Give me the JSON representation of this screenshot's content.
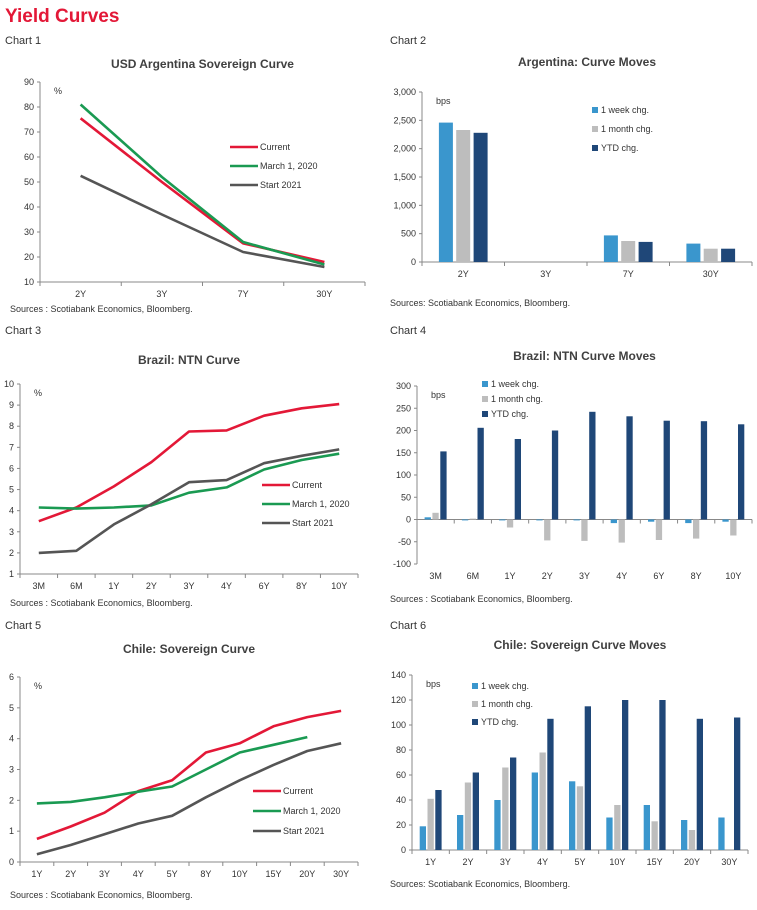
{
  "page": {
    "title": "Yield Curves",
    "colors": {
      "title": "#e31837",
      "current": "#e31837",
      "march": "#1a9a52",
      "start2021": "#555555",
      "week": "#3a96cd",
      "month": "#bdbdbd",
      "ytd": "#1f4778"
    }
  },
  "chart_data": [
    {
      "label": "Chart 1",
      "type": "line",
      "title": "USD Argentina Sovereign Curve",
      "unit": "%",
      "categories": [
        "2Y",
        "3Y",
        "7Y",
        "30Y"
      ],
      "ylim": [
        10,
        90
      ],
      "yticks": [
        10,
        20,
        30,
        40,
        50,
        60,
        70,
        80,
        90
      ],
      "legend_position": "middle-right",
      "series": [
        {
          "name": "Current",
          "color": "#e31837",
          "values": [
            75.5,
            50,
            25.5,
            18
          ]
        },
        {
          "name": "March 1, 2020",
          "color": "#1a9a52",
          "values": [
            81,
            52,
            26,
            17
          ]
        },
        {
          "name": "Start 2021",
          "color": "#555555",
          "values": [
            52.5,
            37,
            22,
            16
          ]
        }
      ],
      "source": "Sources : Scotiabank Economics, Bloomberg."
    },
    {
      "label": "Chart 2",
      "type": "bar",
      "title": "Argentina: Curve Moves",
      "unit": "bps",
      "categories": [
        "2Y",
        "3Y",
        "7Y",
        "30Y"
      ],
      "ylim": [
        0,
        3000
      ],
      "yticks": [
        0,
        500,
        1000,
        1500,
        2000,
        2500,
        3000
      ],
      "ytick_labels": [
        "0",
        "500",
        "1,000",
        "1,500",
        "2,000",
        "2,500",
        "3,000"
      ],
      "legend_position": "top-right",
      "series": [
        {
          "name": "1 week chg.",
          "color": "#3a96cd",
          "values": [
            2460,
            null,
            470,
            325
          ]
        },
        {
          "name": "1 month chg.",
          "color": "#bdbdbd",
          "values": [
            2330,
            null,
            370,
            235
          ]
        },
        {
          "name": "YTD chg.",
          "color": "#1f4778",
          "values": [
            2280,
            null,
            355,
            235
          ]
        }
      ],
      "source": "Sources: Scotiabank Economics, Bloomberg."
    },
    {
      "label": "Chart 3",
      "type": "line",
      "title": "Brazil: NTN Curve",
      "unit": "%",
      "categories": [
        "3M",
        "6M",
        "1Y",
        "2Y",
        "3Y",
        "4Y",
        "6Y",
        "8Y",
        "10Y"
      ],
      "ylim": [
        1,
        10
      ],
      "yticks": [
        1,
        2,
        3,
        4,
        5,
        6,
        7,
        8,
        9,
        10
      ],
      "legend_position": "middle-right",
      "series": [
        {
          "name": "Current",
          "color": "#e31837",
          "values": [
            3.5,
            4.15,
            5.15,
            6.3,
            7.75,
            7.8,
            8.5,
            8.85,
            9.05
          ]
        },
        {
          "name": "March 1, 2020",
          "color": "#1a9a52",
          "values": [
            4.15,
            4.1,
            4.15,
            4.25,
            4.85,
            5.1,
            5.95,
            6.4,
            6.7
          ]
        },
        {
          "name": "Start 2021",
          "color": "#555555",
          "values": [
            2.0,
            2.1,
            3.35,
            4.3,
            5.35,
            5.45,
            6.25,
            6.6,
            6.9
          ]
        }
      ],
      "source": "Sources : Scotiabank Economics, Bloomberg."
    },
    {
      "label": "Chart 4",
      "type": "bar",
      "title": "Brazil: NTN Curve Moves",
      "unit": "bps",
      "categories": [
        "3M",
        "6M",
        "1Y",
        "2Y",
        "3Y",
        "4Y",
        "6Y",
        "8Y",
        "10Y"
      ],
      "ylim": [
        -100,
        300
      ],
      "yticks": [
        -100,
        -50,
        0,
        50,
        100,
        150,
        200,
        250,
        300
      ],
      "legend_position": "top-left",
      "series": [
        {
          "name": "1 week chg.",
          "color": "#3a96cd",
          "values": [
            5,
            -2,
            -2,
            -2,
            -2,
            -8,
            -5,
            -8,
            -5
          ]
        },
        {
          "name": "1 month chg.",
          "color": "#bdbdbd",
          "values": [
            15,
            2,
            -18,
            -47,
            -48,
            -52,
            -46,
            -43,
            -36
          ]
        },
        {
          "name": "YTD chg.",
          "color": "#1f4778",
          "values": [
            153,
            206,
            181,
            200,
            242,
            232,
            222,
            221,
            214
          ]
        }
      ],
      "source": "Sources : Scotiabank Economics, Bloomberg."
    },
    {
      "label": "Chart 5",
      "type": "line",
      "title": "Chile: Sovereign Curve",
      "unit": "%",
      "categories": [
        "1Y",
        "2Y",
        "3Y",
        "4Y",
        "5Y",
        "8Y",
        "10Y",
        "15Y",
        "20Y",
        "30Y"
      ],
      "ylim": [
        0,
        6
      ],
      "yticks": [
        0,
        1,
        2,
        3,
        4,
        5,
        6
      ],
      "legend_position": "bottom-right",
      "series": [
        {
          "name": "Current",
          "color": "#e31837",
          "values": [
            0.75,
            1.15,
            1.6,
            2.3,
            2.65,
            3.55,
            3.85,
            4.4,
            4.7,
            4.9
          ]
        },
        {
          "name": "March 1, 2020",
          "color": "#1a9a52",
          "values": [
            1.9,
            1.95,
            2.1,
            2.28,
            2.45,
            3.0,
            3.55,
            3.8,
            4.05,
            null
          ]
        },
        {
          "name": "Start 2021",
          "color": "#555555",
          "values": [
            0.25,
            0.55,
            0.9,
            1.25,
            1.5,
            2.1,
            2.65,
            3.15,
            3.6,
            3.85
          ]
        }
      ],
      "source": "Sources : Scotiabank Economics, Bloomberg."
    },
    {
      "label": "Chart 6",
      "type": "bar",
      "title": "Chile: Sovereign Curve Moves",
      "unit": "bps",
      "categories": [
        "1Y",
        "2Y",
        "3Y",
        "4Y",
        "5Y",
        "10Y",
        "15Y",
        "20Y",
        "30Y"
      ],
      "ylim": [
        0,
        140
      ],
      "yticks": [
        0,
        20,
        40,
        60,
        80,
        100,
        120,
        140
      ],
      "legend_position": "top-left",
      "series": [
        {
          "name": "1 week chg.",
          "color": "#3a96cd",
          "values": [
            19,
            28,
            40,
            62,
            55,
            26,
            36,
            24,
            26
          ]
        },
        {
          "name": "1 month chg.",
          "color": "#bdbdbd",
          "values": [
            41,
            54,
            66,
            78,
            51,
            36,
            23,
            16,
            null
          ]
        },
        {
          "name": "YTD chg.",
          "color": "#1f4778",
          "values": [
            48,
            62,
            74,
            105,
            115,
            120,
            120,
            105,
            106
          ]
        }
      ],
      "source": "Sources: Scotiabank Economics, Bloomberg."
    }
  ]
}
